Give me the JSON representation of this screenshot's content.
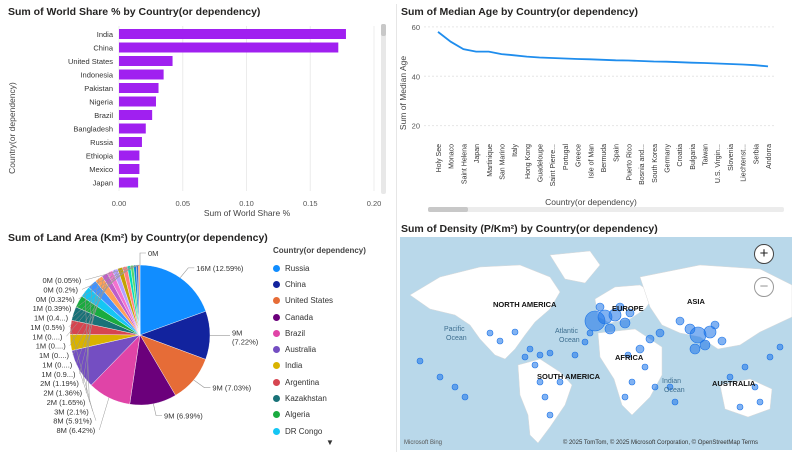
{
  "panels": {
    "world_share": "Sum of World Share % by Country(or dependency)",
    "median_age": "Sum of Median Age by Country(or dependency)",
    "land_area": "Sum of Land Area (Km²) by Country(or dependency)",
    "density": "Sum of Density (P/Km²) by Country(or dependency)"
  },
  "colors": {
    "bar": "#a020f0",
    "line": "#1f8ded",
    "bubble": "#1a73e8"
  },
  "map": {
    "labels": {
      "na": "NORTH AMERICA",
      "sa": "SOUTH AMERICA",
      "eu": "EUROPE",
      "af": "AFRICA",
      "as": "ASIA",
      "au": "AUSTRALIA",
      "pac": "Pacific",
      "pac2": "Ocean",
      "atl": "Atlantic",
      "atl2": "Ocean",
      "ind": "Indian",
      "ind2": "Ocean"
    },
    "zoom_in": "+",
    "zoom_out": "−",
    "attribution": "© 2025 TomTom, © 2025 Microsoft Corporation, © OpenStreetMap  Terms",
    "provider": "Microsoft Bing"
  },
  "legend": {
    "title": "Country(or dependency)",
    "items": [
      "Russia",
      "China",
      "United States",
      "Canada",
      "Brazil",
      "Australia",
      "India",
      "Argentina",
      "Kazakhstan",
      "Algeria",
      "DR Congo"
    ]
  },
  "chart_data": [
    {
      "type": "bar",
      "orientation": "horizontal",
      "title": "Sum of World Share % by Country(or dependency)",
      "xlabel": "Sum of World Share %",
      "ylabel": "Country(or dependency)",
      "categories": [
        "India",
        "China",
        "United States",
        "Indonesia",
        "Pakistan",
        "Nigeria",
        "Brazil",
        "Bangladesh",
        "Russia",
        "Ethiopia",
        "Mexico",
        "Japan"
      ],
      "values": [
        0.178,
        0.172,
        0.042,
        0.035,
        0.031,
        0.029,
        0.026,
        0.021,
        0.018,
        0.016,
        0.016,
        0.015
      ],
      "xlim": [
        0,
        0.2
      ],
      "xticks": [
        "0.00",
        "0.05",
        "0.10",
        "0.15",
        "0.20"
      ]
    },
    {
      "type": "line",
      "title": "Sum of Median Age by Country(or dependency)",
      "xlabel": "Country(or dependency)",
      "ylabel": "Sum of Median Age",
      "ylim": [
        15,
        62
      ],
      "yticks": [
        20,
        40,
        60
      ],
      "x": [
        "Holy See",
        "Monaco",
        "Saint Helena",
        "Japan",
        "Martinique",
        "San Marino",
        "Italy",
        "Hong Kong",
        "Guadeloupe",
        "Saint Pierre...",
        "Portugal",
        "Greece",
        "Isle of Man",
        "Bermuda",
        "Spain",
        "Puerto Rico",
        "Bosnia and...",
        "South Korea",
        "Germany",
        "Croatia",
        "Bulgaria",
        "Taiwan",
        "U.S. Virgin...",
        "Slovenia",
        "Liechtenst...",
        "Serbia",
        "Andorra"
      ],
      "y": [
        58,
        54,
        51,
        50,
        50,
        49,
        48.5,
        48,
        47.6,
        47.4,
        47.2,
        47,
        46.9,
        46.7,
        46.5,
        46.4,
        46.2,
        46,
        45.9,
        45.7,
        45.5,
        45.4,
        45.2,
        45,
        44.8,
        44.5,
        44
      ]
    },
    {
      "type": "pie",
      "title": "Sum of Land Area (Km²) by Country(or dependency)",
      "slices": [
        {
          "name": "Russia",
          "value": 12.59,
          "label": "16M (12.59%)",
          "color": "#118dff"
        },
        {
          "name": "China",
          "value": 7.22,
          "label": "9M (7.22%)",
          "color": "#12239e"
        },
        {
          "name": "United States",
          "value": 7.03,
          "label": "9M (7.03%)",
          "color": "#e66c37"
        },
        {
          "name": "Canada",
          "value": 6.99,
          "label": "9M (6.99%)",
          "color": "#6b007b"
        },
        {
          "name": "Brazil",
          "value": 6.42,
          "label": "8M (6.42%)",
          "color": "#e044a7"
        },
        {
          "name": "Australia",
          "value": 5.91,
          "label": "8M (5.91%)",
          "color": "#744ec2"
        },
        {
          "name": "India",
          "value": 2.4,
          "label": "",
          "color": "#d9b300"
        },
        {
          "name": "Argentina",
          "value": 2.1,
          "label": "3M (2.1%)",
          "color": "#d64550"
        },
        {
          "name": "Kazakhstan",
          "value": 2.05,
          "label": "",
          "color": "#197278"
        },
        {
          "name": "Algeria",
          "value": 1.8,
          "label": "",
          "color": "#1aab40"
        },
        {
          "name": "DR Congo",
          "value": 1.65,
          "label": "2M (1.65%)",
          "color": "#15c6f4"
        },
        {
          "name": "",
          "value": 1.36,
          "label": "2M (1.36%)",
          "color": "#4092ff"
        },
        {
          "name": "",
          "value": 1.19,
          "label": "2M (1.19%)",
          "color": "#ffa058"
        },
        {
          "name": "",
          "value": 0.9,
          "label": "1M (0.9...)",
          "color": "#be5dc9"
        },
        {
          "name": "",
          "value": 0.85,
          "label": "1M (0....)",
          "color": "#f472d0"
        },
        {
          "name": "",
          "value": 0.8,
          "label": "1M (0....)",
          "color": "#b5a1ff"
        },
        {
          "name": "",
          "value": 0.75,
          "label": "1M (0....)",
          "color": "#c4a200"
        },
        {
          "name": "",
          "value": 0.7,
          "label": "1M (0....)",
          "color": "#ff8080"
        },
        {
          "name": "",
          "value": 0.5,
          "label": "1M (0.5%)",
          "color": "#00dbbc"
        },
        {
          "name": "",
          "value": 0.45,
          "label": "1M (0.4...)",
          "color": "#5bd667"
        },
        {
          "name": "",
          "value": 0.39,
          "label": "1M (0.39%)",
          "color": "#0091d5"
        },
        {
          "name": "",
          "value": 0.32,
          "label": "0M (0.32%)",
          "color": "#4668c5"
        },
        {
          "name": "",
          "value": 0.2,
          "label": "0M (0.2%)",
          "color": "#ff6300"
        },
        {
          "name": "",
          "value": 0.05,
          "label": "0M (0.05%)",
          "color": "#99009a"
        },
        {
          "name": "",
          "value": 0.0,
          "label": "0M",
          "color": "#ec008c"
        }
      ]
    },
    {
      "type": "scatter",
      "title": "Sum of Density (P/Km²) by Country(or dependency)",
      "note": "bubble map, bubble size proportional to density"
    }
  ]
}
